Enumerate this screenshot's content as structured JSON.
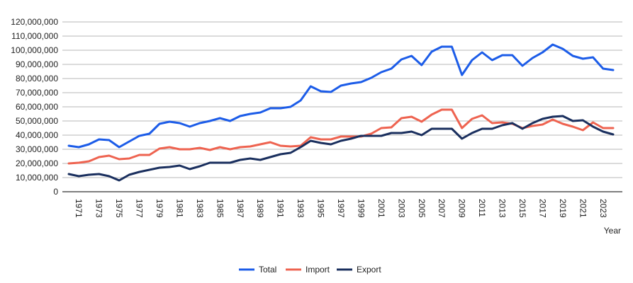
{
  "chart_data": {
    "type": "line",
    "title": "",
    "xlabel": "Year",
    "ylabel": "",
    "ylim": [
      0,
      120000000
    ],
    "yticks": [
      0,
      10000000,
      20000000,
      30000000,
      40000000,
      50000000,
      60000000,
      70000000,
      80000000,
      90000000,
      100000000,
      110000000,
      120000000
    ],
    "ytick_labels": [
      "0",
      "10,000,000",
      "20,000,000",
      "30,000,000",
      "40,000,000",
      "50,000,000",
      "60,000,000",
      "70,000,000",
      "80,000,000",
      "90,000,000",
      "100,000,000",
      "110,000,000",
      "120,000,000"
    ],
    "xtick_labels": [
      "1971",
      "1973",
      "1975",
      "1977",
      "1979",
      "1981",
      "1983",
      "1985",
      "1987",
      "1989",
      "1991",
      "1993",
      "1995",
      "1997",
      "1999",
      "2001",
      "2003",
      "2005",
      "2007",
      "2009",
      "2011",
      "2013",
      "2015",
      "2017",
      "2019",
      "2021",
      "2023"
    ],
    "grid": true,
    "legend_position": "bottom",
    "x": [
      1970,
      1971,
      1972,
      1973,
      1974,
      1975,
      1976,
      1977,
      1978,
      1979,
      1980,
      1981,
      1982,
      1983,
      1984,
      1985,
      1986,
      1987,
      1988,
      1989,
      1990,
      1991,
      1992,
      1993,
      1994,
      1995,
      1996,
      1997,
      1998,
      1999,
      2000,
      2001,
      2002,
      2003,
      2004,
      2005,
      2006,
      2007,
      2008,
      2009,
      2010,
      2011,
      2012,
      2013,
      2014,
      2015,
      2016,
      2017,
      2018,
      2019,
      2020,
      2021,
      2022,
      2023,
      2024
    ],
    "series": [
      {
        "name": "Total",
        "color": "#1c5ce8",
        "values": [
          32500000,
          31500000,
          33500000,
          37000000,
          36500000,
          31500000,
          35500000,
          39500000,
          41000000,
          48000000,
          49500000,
          48500000,
          46000000,
          48500000,
          50000000,
          52000000,
          50000000,
          53500000,
          55000000,
          56000000,
          59000000,
          59000000,
          60000000,
          64500000,
          74500000,
          71000000,
          70500000,
          75000000,
          76500000,
          77500000,
          80500000,
          84500000,
          87000000,
          93500000,
          96000000,
          89500000,
          99000000,
          102500000,
          102500000,
          82500000,
          93000000,
          98500000,
          93000000,
          96500000,
          96500000,
          89000000,
          94500000,
          98500000,
          104000000,
          101000000,
          96000000,
          94000000,
          95000000,
          87000000,
          86000000
        ]
      },
      {
        "name": "Import",
        "color": "#ee6350",
        "values": [
          20000000,
          20500000,
          21500000,
          24500000,
          25500000,
          23000000,
          23500000,
          26000000,
          26000000,
          30500000,
          31500000,
          30000000,
          30000000,
          31000000,
          29500000,
          31500000,
          30000000,
          31500000,
          32000000,
          33500000,
          35000000,
          32500000,
          32000000,
          32500000,
          38500000,
          37000000,
          37000000,
          39000000,
          39000000,
          39000000,
          41000000,
          45000000,
          45500000,
          52000000,
          53000000,
          49500000,
          54500000,
          58000000,
          58000000,
          45000000,
          51500000,
          54000000,
          48500000,
          49000000,
          48000000,
          45000000,
          46500000,
          47500000,
          51000000,
          48000000,
          46000000,
          43500000,
          49000000,
          45000000,
          45000000
        ]
      },
      {
        "name": "Export",
        "color": "#1a2f5e",
        "values": [
          12500000,
          11000000,
          12000000,
          12500000,
          11000000,
          8000000,
          12000000,
          14000000,
          15500000,
          17000000,
          17500000,
          18500000,
          16000000,
          18000000,
          20500000,
          20500000,
          20500000,
          22500000,
          23500000,
          22500000,
          24500000,
          26500000,
          27500000,
          31500000,
          36000000,
          34500000,
          33500000,
          36000000,
          37500000,
          39500000,
          39500000,
          39500000,
          41500000,
          41500000,
          42500000,
          40000000,
          44500000,
          44500000,
          44500000,
          37500000,
          41500000,
          44500000,
          44500000,
          47000000,
          48500000,
          44500000,
          48500000,
          51500000,
          53000000,
          53500000,
          50000000,
          50500000,
          46000000,
          42500000,
          40500000
        ]
      }
    ]
  },
  "colors": {
    "grid": "#b7b7b7",
    "axis": "#333333",
    "text": "#222222"
  }
}
